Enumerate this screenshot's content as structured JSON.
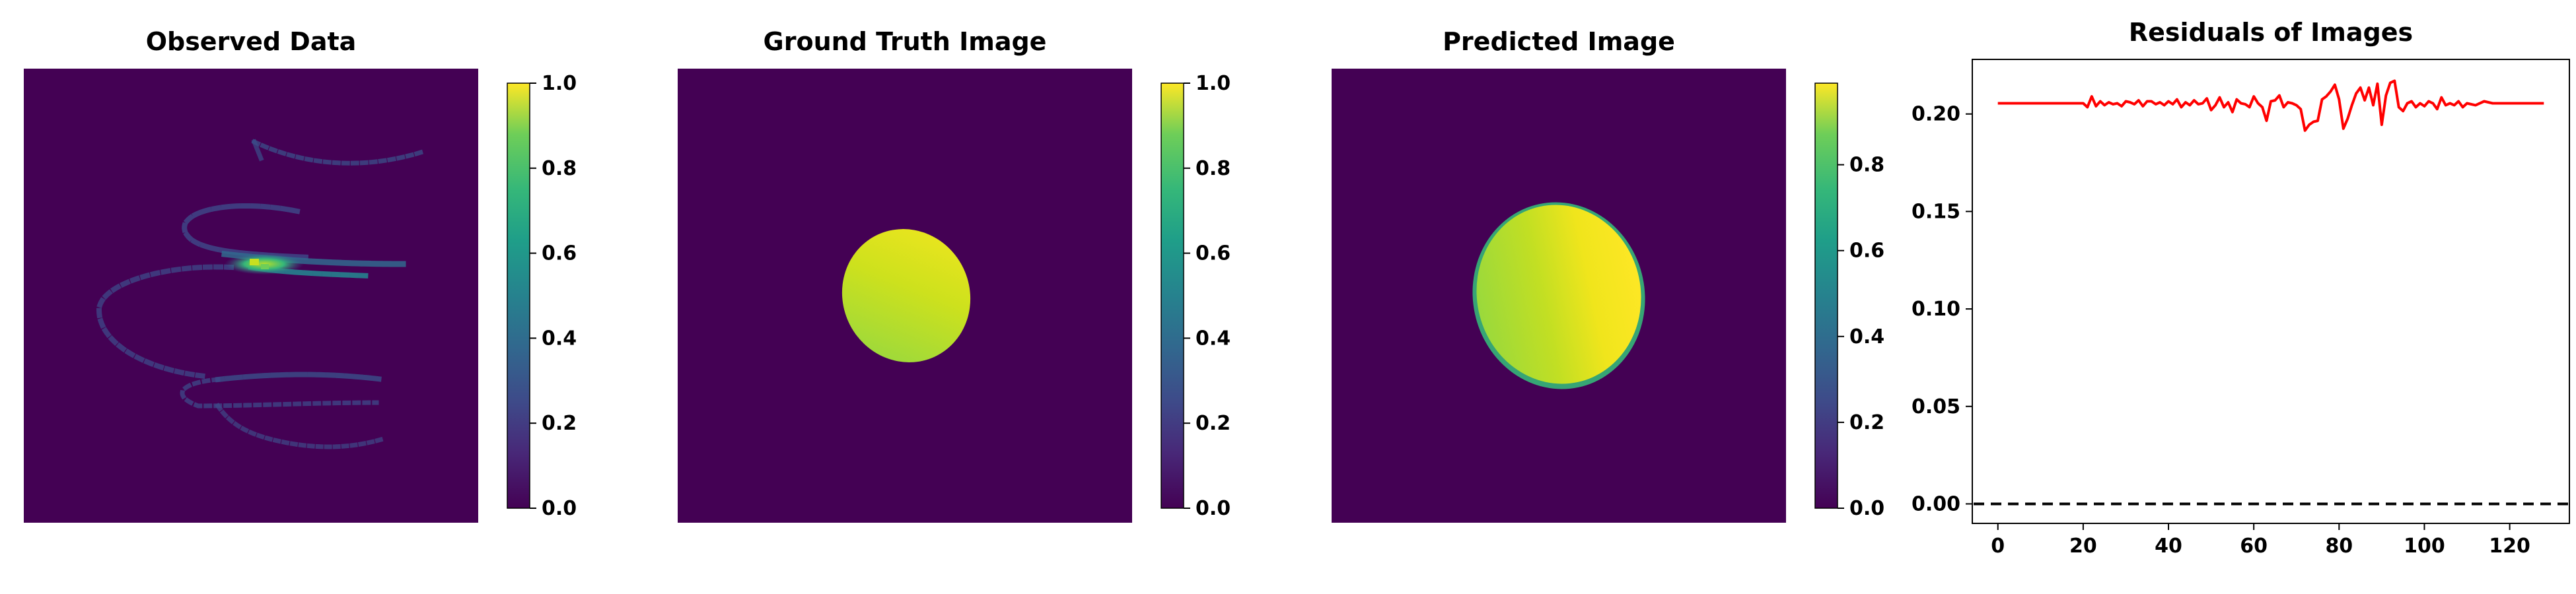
{
  "panels": [
    {
      "title": "Observed Data"
    },
    {
      "title": "Ground Truth Image"
    },
    {
      "title": "Predicted Image"
    },
    {
      "title": "Residuals of Images"
    }
  ],
  "colors": {
    "viridis_low": "#440154",
    "viridis_high": "#fde725",
    "residual_line": "#ff0000",
    "zero_line": "#000000"
  },
  "chart_data": [
    {
      "type": "heatmap",
      "title": "Observed Data",
      "description_values": "sparse spiral of sample points on dark background, peak intensity near center",
      "colorbar": {
        "ticks": [
          "0.0",
          "0.2",
          "0.4",
          "0.6",
          "0.8",
          "1.0"
        ],
        "range": [
          0,
          1
        ]
      }
    },
    {
      "type": "heatmap",
      "title": "Ground Truth Image",
      "colorbar": {
        "ticks": [
          "0.0",
          "0.2",
          "0.4",
          "0.6",
          "0.8",
          "1.0"
        ],
        "range": [
          0,
          1
        ]
      }
    },
    {
      "type": "heatmap",
      "title": "Predicted Image",
      "colorbar": {
        "ticks": [
          "0.0",
          "0.2",
          "0.4",
          "0.6",
          "0.8"
        ],
        "range": [
          0,
          0.99
        ]
      }
    },
    {
      "type": "line",
      "title": "Residuals of Images",
      "xlim": [
        -6,
        134
      ],
      "ylim": [
        -0.01,
        0.228
      ],
      "xticks": [
        "0",
        "20",
        "40",
        "60",
        "80",
        "100",
        "120"
      ],
      "yticks": [
        "0.00",
        "0.05",
        "0.10",
        "0.15",
        "0.20"
      ],
      "reference_line": {
        "y": 0,
        "style": "dashed"
      },
      "series": [
        {
          "x": [
            0,
            2,
            4,
            6,
            8,
            10,
            12,
            14,
            16,
            18,
            20,
            21,
            22,
            23,
            24,
            25,
            26,
            27,
            28,
            29,
            30,
            31,
            32,
            33,
            34,
            35,
            36,
            37,
            38,
            39,
            40,
            41,
            42,
            43,
            44,
            45,
            46,
            47,
            48,
            49,
            50,
            51,
            52,
            53,
            54,
            55,
            56,
            57,
            58,
            59,
            60,
            61,
            62,
            63,
            64,
            65,
            66,
            67,
            68,
            69,
            70,
            71,
            72,
            73,
            74,
            75,
            76,
            77,
            78,
            79,
            80,
            81,
            82,
            83,
            84,
            85,
            86,
            87,
            88,
            89,
            90,
            91,
            92,
            93,
            94,
            95,
            96,
            97,
            98,
            99,
            100,
            101,
            102,
            103,
            104,
            105,
            106,
            107,
            108,
            109,
            110,
            112,
            114,
            116,
            118,
            120,
            122,
            124,
            126,
            128
          ],
          "y": [
            0.2055,
            0.2055,
            0.2055,
            0.2055,
            0.2055,
            0.2055,
            0.2055,
            0.2055,
            0.2055,
            0.2055,
            0.2055,
            0.2035,
            0.209,
            0.204,
            0.2065,
            0.2045,
            0.206,
            0.205,
            0.2055,
            0.204,
            0.2065,
            0.206,
            0.205,
            0.207,
            0.204,
            0.2065,
            0.2065,
            0.205,
            0.206,
            0.2045,
            0.2065,
            0.205,
            0.2075,
            0.2035,
            0.206,
            0.2045,
            0.207,
            0.205,
            0.2055,
            0.208,
            0.202,
            0.2045,
            0.2085,
            0.2035,
            0.206,
            0.201,
            0.2075,
            0.2055,
            0.205,
            0.2035,
            0.209,
            0.2055,
            0.2035,
            0.1965,
            0.2065,
            0.207,
            0.2095,
            0.2035,
            0.206,
            0.2055,
            0.2045,
            0.2025,
            0.1915,
            0.1945,
            0.196,
            0.1965,
            0.2075,
            0.209,
            0.2115,
            0.215,
            0.2075,
            0.1925,
            0.1975,
            0.2045,
            0.2105,
            0.2135,
            0.207,
            0.2135,
            0.2045,
            0.2155,
            0.1945,
            0.2095,
            0.216,
            0.217,
            0.2035,
            0.2015,
            0.2055,
            0.2065,
            0.2035,
            0.2055,
            0.204,
            0.2065,
            0.2055,
            0.2025,
            0.2085,
            0.2045,
            0.2055,
            0.2045,
            0.2065,
            0.2035,
            0.2055,
            0.2045,
            0.2065,
            0.2055,
            0.2055,
            0.2055,
            0.2055,
            0.2055,
            0.2055,
            0.2055
          ]
        }
      ]
    }
  ]
}
